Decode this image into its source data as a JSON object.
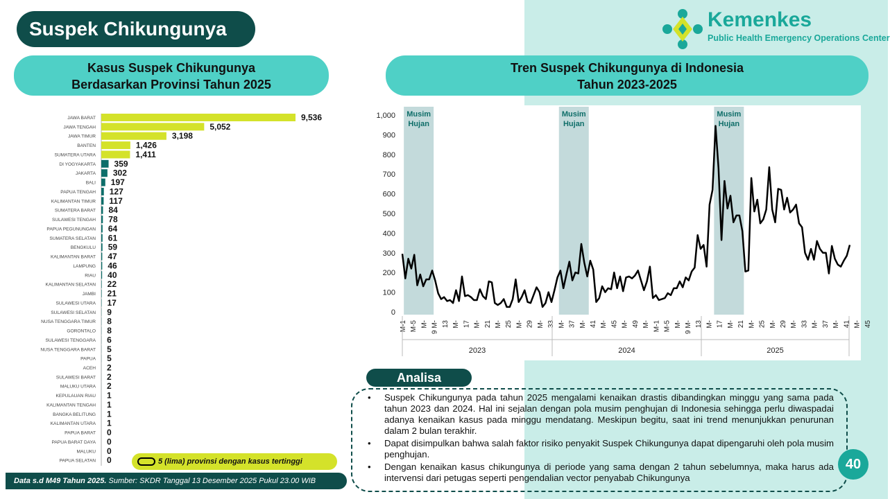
{
  "page_title": "Suspek Chikungunya",
  "logo": {
    "name": "Kemenkes",
    "subtitle": "Public Health Emergency Operations Center"
  },
  "colors": {
    "dark_teal": "#0f4d4a",
    "accent_teal": "#4fd0c6",
    "highlight_bar": "#d4e22a",
    "normal_bar": "#0d6e6a"
  },
  "chart_data": [
    {
      "type": "bar",
      "orientation": "horizontal",
      "title": "Kasus Suspek Chikungunya Berdasarkan Provinsi Tahun 2025",
      "title_line1": "Kasus Suspek Chikungunya",
      "title_line2": "Berdasarkan Provinsi Tahun 2025",
      "highlight_top": 5,
      "categories": [
        "JAWA BARAT",
        "JAWA TENGAH",
        "JAWA TIMUR",
        "BANTEN",
        "SUMATERA UTARA",
        "DI YOGYAKARTA",
        "JAKARTA",
        "BALI",
        "PAPUA TENGAH",
        "KALIMANTAN TIMUR",
        "SUMATERA BARAT",
        "SULAWESI TENGAH",
        "PAPUA PEGUNUNGAN",
        "SUMATERA SELATAN",
        "BENGKULU",
        "KALIMANTAN BARAT",
        "LAMPUNG",
        "RIAU",
        "KALIMANTAN SELATAN",
        "JAMBI",
        "SULAWESI UTARA",
        "SULAWESI SELATAN",
        "NUSA TENGGARA TIMUR",
        "GORONTALO",
        "SULAWESI TENGGARA",
        "NUSA TENGGARA BARAT",
        "PAPUA",
        "ACEH",
        "SULAWESI BARAT",
        "MALUKU UTARA",
        "KEPULAUAN RIAU",
        "KALIMANTAN TENGAH",
        "BANGKA BELITUNG",
        "KALIMANTAN UTARA",
        "PAPUA BARAT",
        "PAPUA BARAT DAYA",
        "MALUKU",
        "PAPUA SELATAN"
      ],
      "values": [
        9536,
        5052,
        3198,
        1426,
        1411,
        359,
        302,
        197,
        127,
        117,
        84,
        78,
        64,
        61,
        59,
        47,
        46,
        40,
        22,
        21,
        17,
        9,
        8,
        8,
        6,
        5,
        5,
        2,
        2,
        2,
        1,
        1,
        1,
        1,
        0,
        0,
        0,
        0
      ],
      "value_labels": [
        "9,536",
        "5,052",
        "3,198",
        "1,426",
        "1,411",
        "359",
        "302",
        "197",
        "127",
        "117",
        "84",
        "78",
        "64",
        "61",
        "59",
        "47",
        "46",
        "40",
        "22",
        "21",
        "17",
        "9",
        "8",
        "8",
        "6",
        "5",
        "5",
        "2",
        "2",
        "2",
        "1",
        "1",
        "1",
        "1",
        "0",
        "0",
        "0",
        "0"
      ],
      "legend": "5 (lima) provinsi dengan kasus tertinggi"
    },
    {
      "type": "line",
      "title": "Tren Suspek Chikungunya di Indonesia Tahun 2023-2025",
      "title_line1": "Tren Suspek Chikungunya di Indonesia",
      "title_line2": "Tahun 2023-2025",
      "ylim": [
        0,
        1000
      ],
      "yticks": [
        "0",
        "100",
        "200",
        "300",
        "400",
        "500",
        "600",
        "700",
        "800",
        "900",
        "1,000"
      ],
      "years": [
        "2023",
        "2024",
        "2025"
      ],
      "week_tick_labels": [
        "M-1",
        "M-5",
        "M-",
        "9 M-",
        "13",
        "M-",
        "17",
        "M-",
        "21",
        "M-",
        "25",
        "M-",
        "29",
        "M-",
        "33",
        "M-",
        "37",
        "M-",
        "41",
        "M-",
        "45",
        "M-",
        "49",
        "M-",
        "M-1",
        "M-5",
        "M-",
        "9 M-",
        "13",
        "M-",
        "17",
        "M-",
        "21",
        "M-",
        "25",
        "M-",
        "29",
        "M-",
        "33",
        "M-",
        "37",
        "M-",
        "41",
        "M-",
        "45"
      ],
      "season_label_line1": "Musim",
      "season_label_line2": "Hujan",
      "season_bands": [
        [
          1,
          10
        ],
        [
          53,
          62
        ],
        [
          105,
          114
        ]
      ],
      "series": [
        {
          "values": [
            295,
            170,
            270,
            220,
            290,
            135,
            190,
            130,
            165,
            165,
            210,
            160,
            95,
            65,
            75,
            55,
            60,
            45,
            110,
            55,
            180,
            80,
            85,
            75,
            60,
            60,
            115,
            80,
            65,
            155,
            150,
            45,
            35,
            45,
            65,
            25,
            25,
            65,
            165,
            50,
            75,
            110,
            50,
            45,
            85,
            125,
            100,
            25,
            45,
            100,
            50,
            110,
            175,
            210,
            120,
            190,
            255,
            160,
            200,
            195,
            345,
            250,
            180,
            260,
            215,
            50,
            70,
            130,
            100,
            120,
            115,
            200,
            120,
            180,
            105,
            175,
            180,
            170,
            185,
            210,
            160,
            110,
            155,
            230,
            70,
            85,
            60,
            65,
            70,
            95,
            85,
            120,
            120,
            155,
            125,
            175,
            160,
            205,
            225,
            390,
            320,
            340,
            230,
            545,
            620,
            945,
            730,
            365,
            665,
            525,
            590,
            455,
            490,
            490,
            410,
            205,
            210,
            680,
            510,
            570,
            450,
            470,
            520,
            735,
            520,
            455,
            625,
            620,
            520,
            580,
            505,
            520,
            545,
            450,
            430,
            300,
            265,
            320,
            265,
            360,
            320,
            300,
            300,
            195,
            335,
            270,
            240,
            230,
            260,
            285,
            340
          ]
        }
      ]
    }
  ],
  "analisa": {
    "heading": "Analisa",
    "points": [
      "Suspek Chikungunya pada tahun 2025 mengalami kenaikan drastis dibandingkan minggu yang sama pada tahun 2023 dan 2024. Hal ini sejalan dengan pola musim penghujan di Indonesia sehingga perlu diwaspadai adanya kenaikan kasus pada minggu mendatang. Meskipun begitu, saat ini trend menunjukkan penurunan dalam 2 bulan terakhir.",
      "Dapat disimpulkan bahwa salah faktor risiko penyakit Suspek Chikungunya dapat dipengaruhi oleh pola musim penghujan.",
      "Dengan kenaikan kasus chikungunya di periode yang sama dengan 2 tahun sebelumnya, maka harus ada intervensi dari petugas seperti pengendalian vector penyabab Chikungunya"
    ]
  },
  "footer": {
    "bold": "Data s.d M49 Tahun 2025.",
    "rest": " Sumber: SKDR Tanggal 13 Desember 2025 Pukul 23.00 WIB"
  },
  "page_number": "40"
}
